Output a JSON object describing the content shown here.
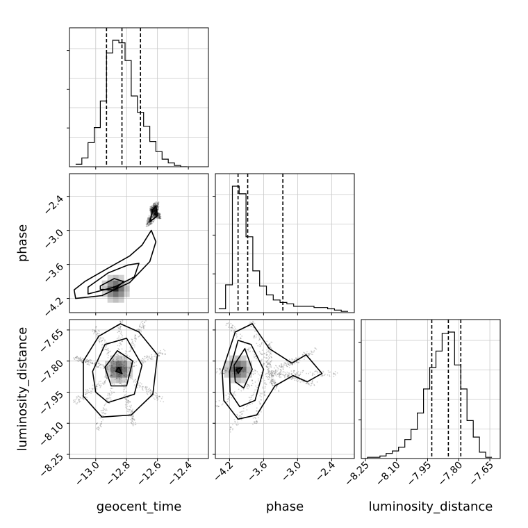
{
  "chart_data": {
    "type": "corner",
    "parameters": [
      "geocent_time",
      "phase",
      "luminosity_distance"
    ],
    "ranges": {
      "geocent_time": [
        -13.17,
        -12.27
      ],
      "phase": [
        -4.45,
        -2.0
      ],
      "luminosity_distance": [
        -8.27,
        -7.6
      ]
    },
    "ticks": {
      "geocent_time": [
        "−13.0",
        "−12.8",
        "−12.6",
        "−12.4"
      ],
      "phase": [
        "−4.2",
        "−3.6",
        "−3.0",
        "−2.4"
      ],
      "luminosity_distance": [
        "−8.25",
        "−8.10",
        "−7.95",
        "−7.80",
        "−7.65"
      ]
    },
    "tick_values": {
      "geocent_time": [
        -13.0,
        -12.8,
        -12.6,
        -12.4
      ],
      "phase": [
        -4.2,
        -3.6,
        -3.0,
        -2.4
      ],
      "luminosity_distance": [
        -8.25,
        -8.1,
        -7.95,
        -7.8,
        -7.65
      ]
    },
    "quantiles": {
      "geocent_time": [
        -12.93,
        -12.83,
        -12.71
      ],
      "phase": [
        -4.05,
        -3.88,
        -3.26
      ],
      "luminosity_distance": [
        -7.93,
        -7.85,
        -7.79
      ]
    },
    "histograms": {
      "geocent_time": {
        "edges": [
          -13.13,
          -13.09,
          -13.05,
          -13.01,
          -12.97,
          -12.93,
          -12.89,
          -12.85,
          -12.81,
          -12.77,
          -12.73,
          -12.69,
          -12.65,
          -12.61,
          -12.57,
          -12.53,
          -12.49,
          -12.45,
          -12.41
        ],
        "counts": [
          0.02,
          0.07,
          0.19,
          0.31,
          0.52,
          0.9,
          1.0,
          0.98,
          0.84,
          0.56,
          0.43,
          0.32,
          0.2,
          0.12,
          0.06,
          0.03,
          0.01,
          0.0
        ]
      },
      "phase": {
        "edges": [
          -4.39,
          -4.27,
          -4.15,
          -4.03,
          -3.91,
          -3.79,
          -3.67,
          -3.55,
          -3.43,
          -3.31,
          -3.19,
          -3.07,
          -2.95,
          -2.83,
          -2.71,
          -2.59,
          -2.47,
          -2.35,
          -2.23,
          -2.11
        ],
        "counts": [
          0.03,
          0.22,
          1.0,
          0.94,
          0.6,
          0.33,
          0.21,
          0.14,
          0.1,
          0.08,
          0.07,
          0.05,
          0.05,
          0.05,
          0.04,
          0.04,
          0.03,
          0.02,
          0.01
        ]
      },
      "luminosity_distance": {
        "edges": [
          -8.27,
          -8.24,
          -8.21,
          -8.18,
          -8.15,
          -8.12,
          -8.09,
          -8.06,
          -8.03,
          -8.0,
          -7.97,
          -7.94,
          -7.91,
          -7.88,
          -7.85,
          -7.82,
          -7.79,
          -7.76,
          -7.73,
          -7.7,
          -7.67,
          -7.64
        ],
        "counts": [
          0.0,
          0.01,
          0.01,
          0.02,
          0.04,
          0.06,
          0.09,
          0.15,
          0.23,
          0.36,
          0.55,
          0.72,
          0.85,
          0.99,
          1.0,
          0.74,
          0.55,
          0.3,
          0.17,
          0.05,
          0.01
        ]
      }
    },
    "contours": {
      "phase_vs_geocent_time": [
        [
          [
            -12.97,
            -3.98
          ],
          [
            -12.88,
            -3.85
          ],
          [
            -12.82,
            -3.9
          ],
          [
            -12.88,
            -4.05
          ],
          [
            -12.97,
            -4.04
          ]
        ],
        [
          [
            -13.05,
            -4.0
          ],
          [
            -12.92,
            -3.75
          ],
          [
            -12.79,
            -3.61
          ],
          [
            -12.72,
            -3.58
          ],
          [
            -12.75,
            -3.82
          ],
          [
            -12.88,
            -4.0
          ],
          [
            -13.05,
            -4.12
          ]
        ],
        [
          [
            -13.14,
            -4.05
          ],
          [
            -13.07,
            -3.9
          ],
          [
            -12.91,
            -3.65
          ],
          [
            -12.78,
            -3.45
          ],
          [
            -12.7,
            -3.26
          ],
          [
            -12.64,
            -3.0
          ],
          [
            -12.61,
            -3.2
          ],
          [
            -12.65,
            -3.55
          ],
          [
            -12.78,
            -3.92
          ],
          [
            -12.96,
            -4.15
          ],
          [
            -13.13,
            -4.2
          ]
        ],
        [
          [
            -12.65,
            -2.85
          ],
          [
            -12.63,
            -2.63
          ],
          [
            -12.61,
            -2.57
          ],
          [
            -12.6,
            -2.74
          ]
        ]
      ],
      "luminosity_distance_vs_geocent_time": [
        [
          [
            -12.87,
            -7.85
          ],
          [
            -12.85,
            -7.83
          ],
          [
            -12.83,
            -7.86
          ]
        ],
        [
          [
            -12.94,
            -7.83
          ],
          [
            -12.86,
            -7.75
          ],
          [
            -12.76,
            -7.8
          ],
          [
            -12.8,
            -7.92
          ],
          [
            -12.9,
            -7.92
          ]
        ],
        [
          [
            -13.02,
            -7.85
          ],
          [
            -12.94,
            -7.72
          ],
          [
            -12.8,
            -7.69
          ],
          [
            -12.7,
            -7.82
          ],
          [
            -12.75,
            -7.96
          ],
          [
            -12.92,
            -8.0
          ],
          [
            -13.0,
            -7.95
          ]
        ],
        [
          [
            -13.08,
            -7.8
          ],
          [
            -12.98,
            -7.68
          ],
          [
            -12.84,
            -7.62
          ],
          [
            -12.72,
            -7.66
          ],
          [
            -12.6,
            -7.77
          ],
          [
            -12.63,
            -7.96
          ],
          [
            -12.77,
            -8.06
          ],
          [
            -12.96,
            -8.07
          ],
          [
            -13.08,
            -7.97
          ]
        ]
      ],
      "luminosity_distance_vs_phase": [
        [
          [
            -4.08,
            -7.84
          ],
          [
            -3.97,
            -7.83
          ],
          [
            -4.05,
            -7.86
          ]
        ],
        [
          [
            -4.12,
            -7.82
          ],
          [
            -3.93,
            -7.74
          ],
          [
            -3.8,
            -7.84
          ],
          [
            -3.95,
            -7.93
          ],
          [
            -4.1,
            -7.9
          ]
        ],
        [
          [
            -4.2,
            -7.85
          ],
          [
            -4.05,
            -7.7
          ],
          [
            -3.82,
            -7.72
          ],
          [
            -3.6,
            -7.84
          ],
          [
            -3.75,
            -7.99
          ],
          [
            -4.02,
            -8.02
          ],
          [
            -4.19,
            -7.95
          ]
        ],
        [
          [
            -4.33,
            -7.85
          ],
          [
            -4.1,
            -7.66
          ],
          [
            -3.8,
            -7.62
          ],
          [
            -3.5,
            -7.74
          ],
          [
            -3.1,
            -7.81
          ],
          [
            -2.85,
            -7.77
          ],
          [
            -2.57,
            -7.86
          ],
          [
            -2.83,
            -7.9
          ],
          [
            -3.08,
            -7.87
          ],
          [
            -3.4,
            -7.92
          ],
          [
            -3.72,
            -8.06
          ],
          [
            -4.05,
            -8.08
          ],
          [
            -4.3,
            -7.99
          ]
        ]
      ]
    },
    "density_peaks": {
      "phase_vs_geocent_time": [
        -12.87,
        -4.03
      ],
      "luminosity_distance_vs_geocent_time": [
        -12.85,
        -7.84
      ],
      "luminosity_distance_vs_phase": [
        -4.05,
        -7.84
      ]
    },
    "grid": true
  }
}
